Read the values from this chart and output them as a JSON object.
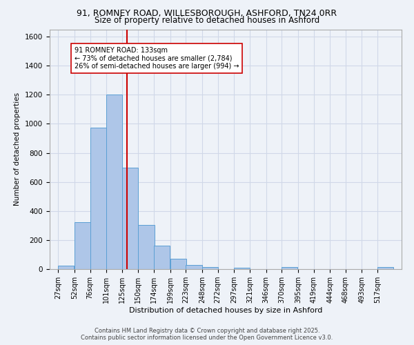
{
  "title_line1": "91, ROMNEY ROAD, WILLESBOROUGH, ASHFORD, TN24 0RR",
  "title_line2": "Size of property relative to detached houses in Ashford",
  "xlabel": "Distribution of detached houses by size in Ashford",
  "ylabel": "Number of detached properties",
  "bin_labels": [
    "27sqm",
    "52sqm",
    "76sqm",
    "101sqm",
    "125sqm",
    "150sqm",
    "174sqm",
    "199sqm",
    "223sqm",
    "248sqm",
    "272sqm",
    "297sqm",
    "321sqm",
    "346sqm",
    "370sqm",
    "395sqm",
    "419sqm",
    "444sqm",
    "468sqm",
    "493sqm",
    "517sqm"
  ],
  "bin_edges": [
    27,
    52,
    76,
    101,
    125,
    150,
    174,
    199,
    223,
    248,
    272,
    297,
    321,
    346,
    370,
    395,
    419,
    444,
    468,
    493,
    517
  ],
  "bar_heights": [
    25,
    325,
    975,
    1200,
    700,
    305,
    160,
    70,
    28,
    15,
    0,
    8,
    0,
    0,
    12,
    0,
    0,
    0,
    0,
    0,
    12
  ],
  "bar_color": "#aec6e8",
  "bar_edge_color": "#5a9fd4",
  "grid_color": "#d0d8e8",
  "background_color": "#eef2f8",
  "red_line_x": 133,
  "annotation_text": "91 ROMNEY ROAD: 133sqm\n← 73% of detached houses are smaller (2,784)\n26% of semi-detached houses are larger (994) →",
  "annotation_box_color": "#ffffff",
  "annotation_edge_color": "#cc0000",
  "ylim": [
    0,
    1650
  ],
  "yticks": [
    0,
    200,
    400,
    600,
    800,
    1000,
    1200,
    1400,
    1600
  ],
  "footer_line1": "Contains HM Land Registry data © Crown copyright and database right 2025.",
  "footer_line2": "Contains public sector information licensed under the Open Government Licence v3.0."
}
